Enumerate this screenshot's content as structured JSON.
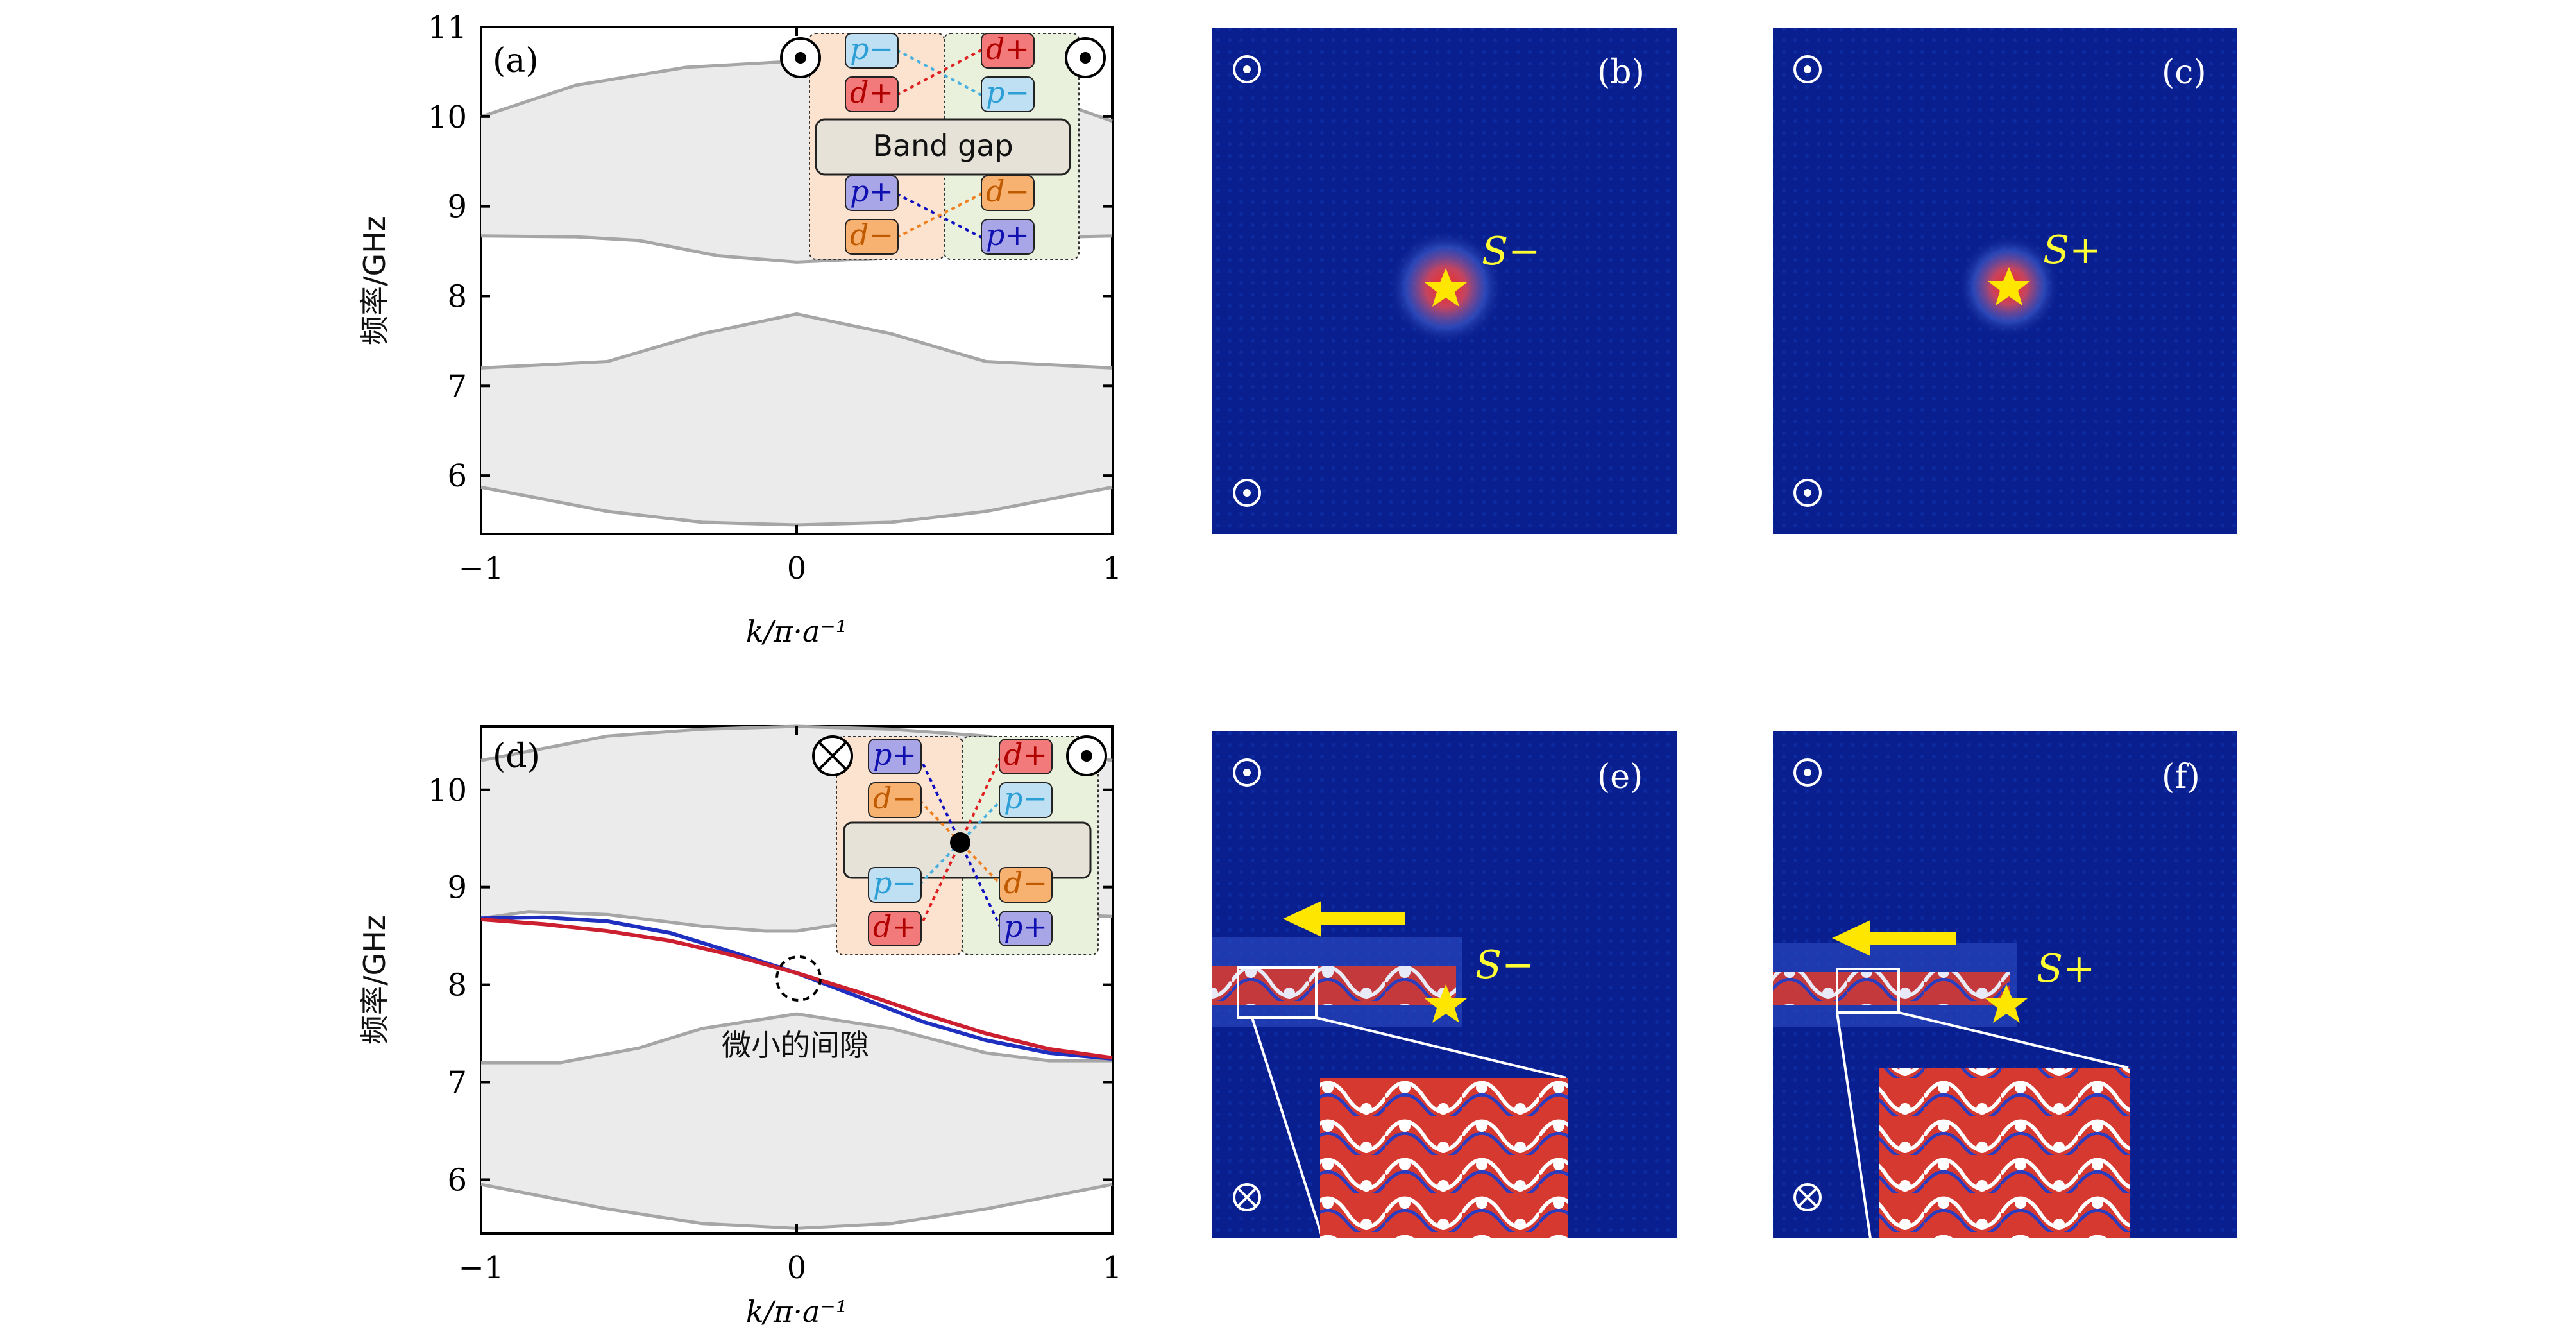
{
  "chart_data": [
    {
      "type": "line",
      "panel_label": "(a)",
      "xlabel": "k/π·a⁻¹",
      "ylabel": "频率/GHz",
      "xlim": [
        -1,
        1
      ],
      "ylim": [
        5.35,
        11
      ],
      "xticks": [
        "−1",
        "0",
        "1"
      ],
      "yticks": [
        "6",
        "7",
        "8",
        "9",
        "10",
        "11"
      ],
      "ytick_values": [
        6,
        7,
        8,
        9,
        10,
        11
      ],
      "bands": [
        {
          "upper": [
            [
              -1,
              10.0
            ],
            [
              -0.7,
              10.35
            ],
            [
              -0.35,
              10.55
            ],
            [
              0,
              10.62
            ],
            [
              0.35,
              10.56
            ],
            [
              0.7,
              10.32
            ],
            [
              1,
              9.95
            ]
          ],
          "lower": [
            [
              -1,
              8.67
            ],
            [
              -0.7,
              8.66
            ],
            [
              -0.5,
              8.62
            ],
            [
              -0.25,
              8.45
            ],
            [
              0,
              8.38
            ],
            [
              0.25,
              8.42
            ],
            [
              0.5,
              8.6
            ],
            [
              0.75,
              8.65
            ],
            [
              1,
              8.67
            ]
          ]
        },
        {
          "upper": [
            [
              -1,
              7.2
            ],
            [
              -0.6,
              7.27
            ],
            [
              -0.3,
              7.58
            ],
            [
              0,
              7.8
            ],
            [
              0.3,
              7.58
            ],
            [
              0.6,
              7.27
            ],
            [
              1,
              7.2
            ]
          ],
          "lower": [
            [
              -1,
              5.87
            ],
            [
              -0.6,
              5.6
            ],
            [
              -0.3,
              5.48
            ],
            [
              0,
              5.45
            ],
            [
              0.3,
              5.48
            ],
            [
              0.6,
              5.6
            ],
            [
              1,
              5.87
            ]
          ]
        }
      ],
      "inset": {
        "left_column": [
          "p−",
          "d+",
          "p+",
          "d−"
        ],
        "right_column": [
          "d+",
          "p−",
          "d−",
          "p+"
        ],
        "center_label": "Band gap",
        "left_symbol": "out-of-plane (dot)",
        "right_symbol": "out-of-plane (dot)"
      }
    },
    {
      "type": "line",
      "panel_label": "(d)",
      "xlabel": "k/π·a⁻¹",
      "ylabel": "频率/GHz",
      "xlim": [
        -1,
        1
      ],
      "ylim": [
        5.45,
        10.65
      ],
      "xticks": [
        "−1",
        "0",
        "1"
      ],
      "yticks": [
        "6",
        "7",
        "8",
        "9",
        "10"
      ],
      "ytick_values": [
        6,
        7,
        8,
        9,
        10
      ],
      "annotation": "微小的间隙",
      "bands": [
        {
          "upper": [
            [
              -1,
              10.3
            ],
            [
              -0.6,
              10.55
            ],
            [
              -0.3,
              10.62
            ],
            [
              0,
              10.65
            ],
            [
              0.3,
              10.62
            ],
            [
              0.6,
              10.55
            ],
            [
              1,
              10.3
            ]
          ],
          "lower": [
            [
              -1,
              8.68
            ],
            [
              -0.85,
              8.75
            ],
            [
              -0.6,
              8.72
            ],
            [
              -0.3,
              8.6
            ],
            [
              -0.1,
              8.55
            ],
            [
              0,
              8.55
            ],
            [
              0.1,
              8.6
            ],
            [
              0.2,
              8.65
            ],
            [
              0.4,
              8.72
            ],
            [
              0.6,
              8.75
            ],
            [
              1,
              8.7
            ]
          ]
        },
        {
          "upper": [
            [
              -1,
              7.2
            ],
            [
              -0.75,
              7.2
            ],
            [
              -0.5,
              7.35
            ],
            [
              -0.3,
              7.55
            ],
            [
              0,
              7.7
            ],
            [
              0.3,
              7.55
            ],
            [
              0.6,
              7.3
            ],
            [
              0.8,
              7.22
            ],
            [
              1,
              7.22
            ]
          ],
          "lower": [
            [
              -1,
              5.95
            ],
            [
              -0.6,
              5.7
            ],
            [
              -0.3,
              5.55
            ],
            [
              0,
              5.5
            ],
            [
              0.3,
              5.55
            ],
            [
              0.6,
              5.7
            ],
            [
              1,
              5.95
            ]
          ]
        }
      ],
      "series": [
        {
          "color": "#1f2fbf",
          "points": [
            [
              -1,
              8.68
            ],
            [
              -0.8,
              8.69
            ],
            [
              -0.6,
              8.65
            ],
            [
              -0.4,
              8.53
            ],
            [
              -0.2,
              8.33
            ],
            [
              0,
              8.12
            ],
            [
              0.2,
              7.87
            ],
            [
              0.4,
              7.62
            ],
            [
              0.6,
              7.43
            ],
            [
              0.8,
              7.3
            ],
            [
              1,
              7.24
            ]
          ]
        },
        {
          "color": "#cc1f2f",
          "points": [
            [
              -1,
              8.67
            ],
            [
              -0.8,
              8.62
            ],
            [
              -0.6,
              8.55
            ],
            [
              -0.4,
              8.45
            ],
            [
              -0.2,
              8.3
            ],
            [
              0,
              8.12
            ],
            [
              0.2,
              7.92
            ],
            [
              0.4,
              7.7
            ],
            [
              0.6,
              7.5
            ],
            [
              0.8,
              7.34
            ],
            [
              1,
              7.25
            ]
          ]
        }
      ],
      "inset": {
        "left_column": [
          "p+",
          "d−",
          "p−",
          "d+"
        ],
        "right_column": [
          "d+",
          "p−",
          "d−",
          "p+"
        ],
        "left_symbol": "into-plane (cross)",
        "right_symbol": "out-of-plane (dot)"
      }
    }
  ],
  "field_panels": [
    {
      "label": "(b)",
      "source": "S−"
    },
    {
      "label": "(c)",
      "source": "S+"
    },
    {
      "label": "(e)",
      "source": "S−"
    },
    {
      "label": "(f)",
      "source": "S+"
    }
  ],
  "colors": {
    "band_fill": "#ebebeb",
    "band_edge": "#a6a6a6",
    "field_bg": "#0a1f8f",
    "source_star": "#ffe600",
    "arrow": "#ffe600",
    "pill_p_minus": "#bfe0f2",
    "pill_p_plus": "#a9a6e8",
    "pill_d_plus": "#f27a7a",
    "pill_d_minus": "#f7b271",
    "inset_left_bg": "#fbe3cf",
    "inset_right_bg": "#e9f1dc",
    "gap_box": "#e7e2d8"
  }
}
